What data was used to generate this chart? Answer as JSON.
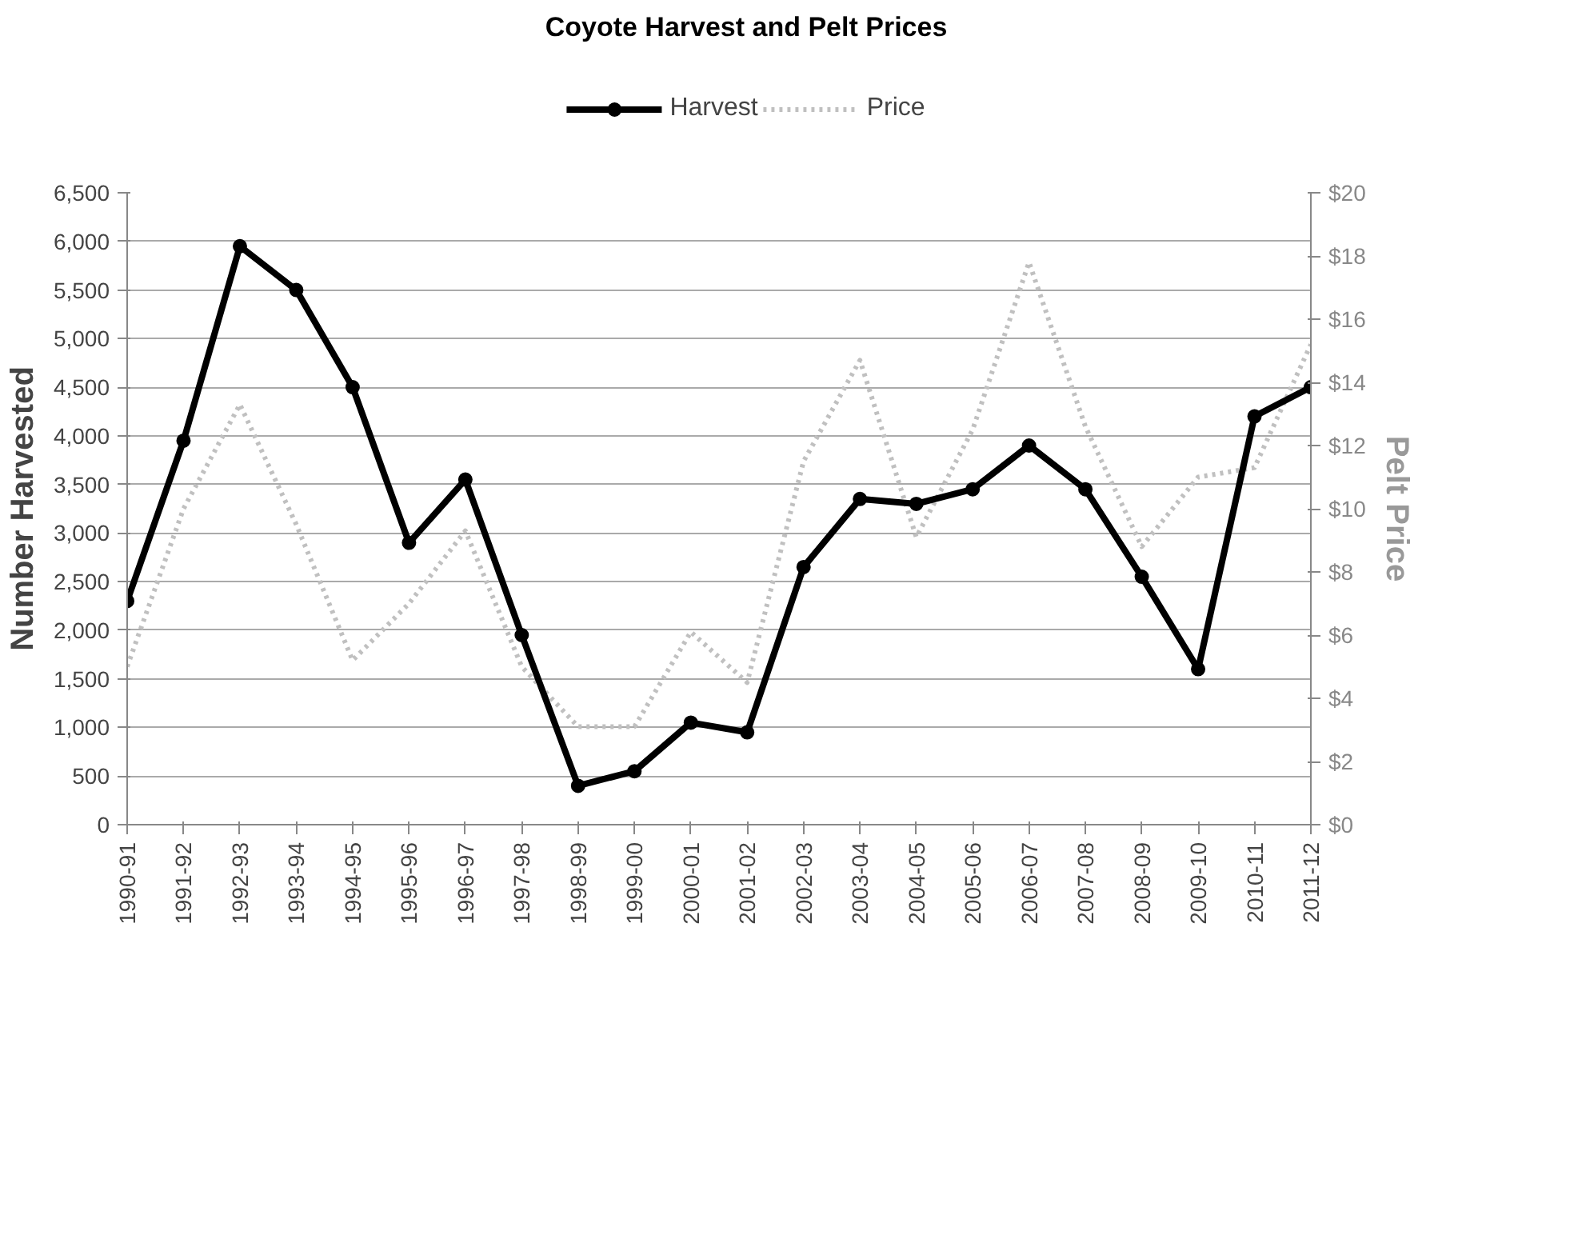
{
  "chart_data": {
    "type": "line",
    "title": "Coyote Harvest and Pelt Prices",
    "ylabel": "Number Harvested",
    "y2label": "Pelt Price",
    "categories": [
      "1990-91",
      "1991-92",
      "1992-93",
      "1993-94",
      "1994-95",
      "1995-96",
      "1996-97",
      "1997-98",
      "1998-99",
      "1999-00",
      "2000-01",
      "2001-02",
      "2002-03",
      "2003-04",
      "2004-05",
      "2005-06",
      "2006-07",
      "2007-08",
      "2008-09",
      "2009-10",
      "2010-11",
      "2011-12"
    ],
    "series": [
      {
        "name": "Harvest",
        "color": "#000000",
        "marker": "circle",
        "line_style": "solid",
        "values": [
          2300,
          3950,
          5950,
          5500,
          4500,
          2900,
          3550,
          1950,
          400,
          550,
          1050,
          950,
          2650,
          3350,
          3300,
          3450,
          3900,
          3450,
          2550,
          1600,
          4200,
          4500
        ]
      },
      {
        "name": "Price",
        "color": "#c0c0c0",
        "marker": "none",
        "line_style": "dotted",
        "axis": "y2",
        "values": [
          5.0,
          10.0,
          13.3,
          9.5,
          5.2,
          7.0,
          9.3,
          5.0,
          3.1,
          3.1,
          6.1,
          4.5,
          11.5,
          14.7,
          9.1,
          12.5,
          17.8,
          12.6,
          8.8,
          11.0,
          11.3,
          15.2
        ]
      }
    ],
    "ylim": [
      0,
      6500
    ],
    "yticks": [
      {
        "value": 0,
        "label": "0"
      },
      {
        "value": 500,
        "label": "500"
      },
      {
        "value": 1000,
        "label": "1,000"
      },
      {
        "value": 1500,
        "label": "1,500"
      },
      {
        "value": 2000,
        "label": "2,000"
      },
      {
        "value": 2500,
        "label": "2,500"
      },
      {
        "value": 3000,
        "label": "3,000"
      },
      {
        "value": 3500,
        "label": "3,500"
      },
      {
        "value": 4000,
        "label": "4,000"
      },
      {
        "value": 4500,
        "label": "4,500"
      },
      {
        "value": 5000,
        "label": "5,000"
      },
      {
        "value": 5500,
        "label": "5,500"
      },
      {
        "value": 6000,
        "label": "6,000"
      },
      {
        "value": 6500,
        "label": "6,500"
      }
    ],
    "y2lim": [
      0,
      20
    ],
    "y2ticks": [
      {
        "value": 0,
        "label": "$0"
      },
      {
        "value": 2,
        "label": "$2"
      },
      {
        "value": 4,
        "label": "$4"
      },
      {
        "value": 6,
        "label": "$6"
      },
      {
        "value": 8,
        "label": "$8"
      },
      {
        "value": 10,
        "label": "$10"
      },
      {
        "value": 12,
        "label": "$12"
      },
      {
        "value": 14,
        "label": "$14"
      },
      {
        "value": 16,
        "label": "$16"
      },
      {
        "value": 18,
        "label": "$18"
      },
      {
        "value": 20,
        "label": "$20"
      }
    ],
    "grid": "y",
    "legend": "top"
  }
}
